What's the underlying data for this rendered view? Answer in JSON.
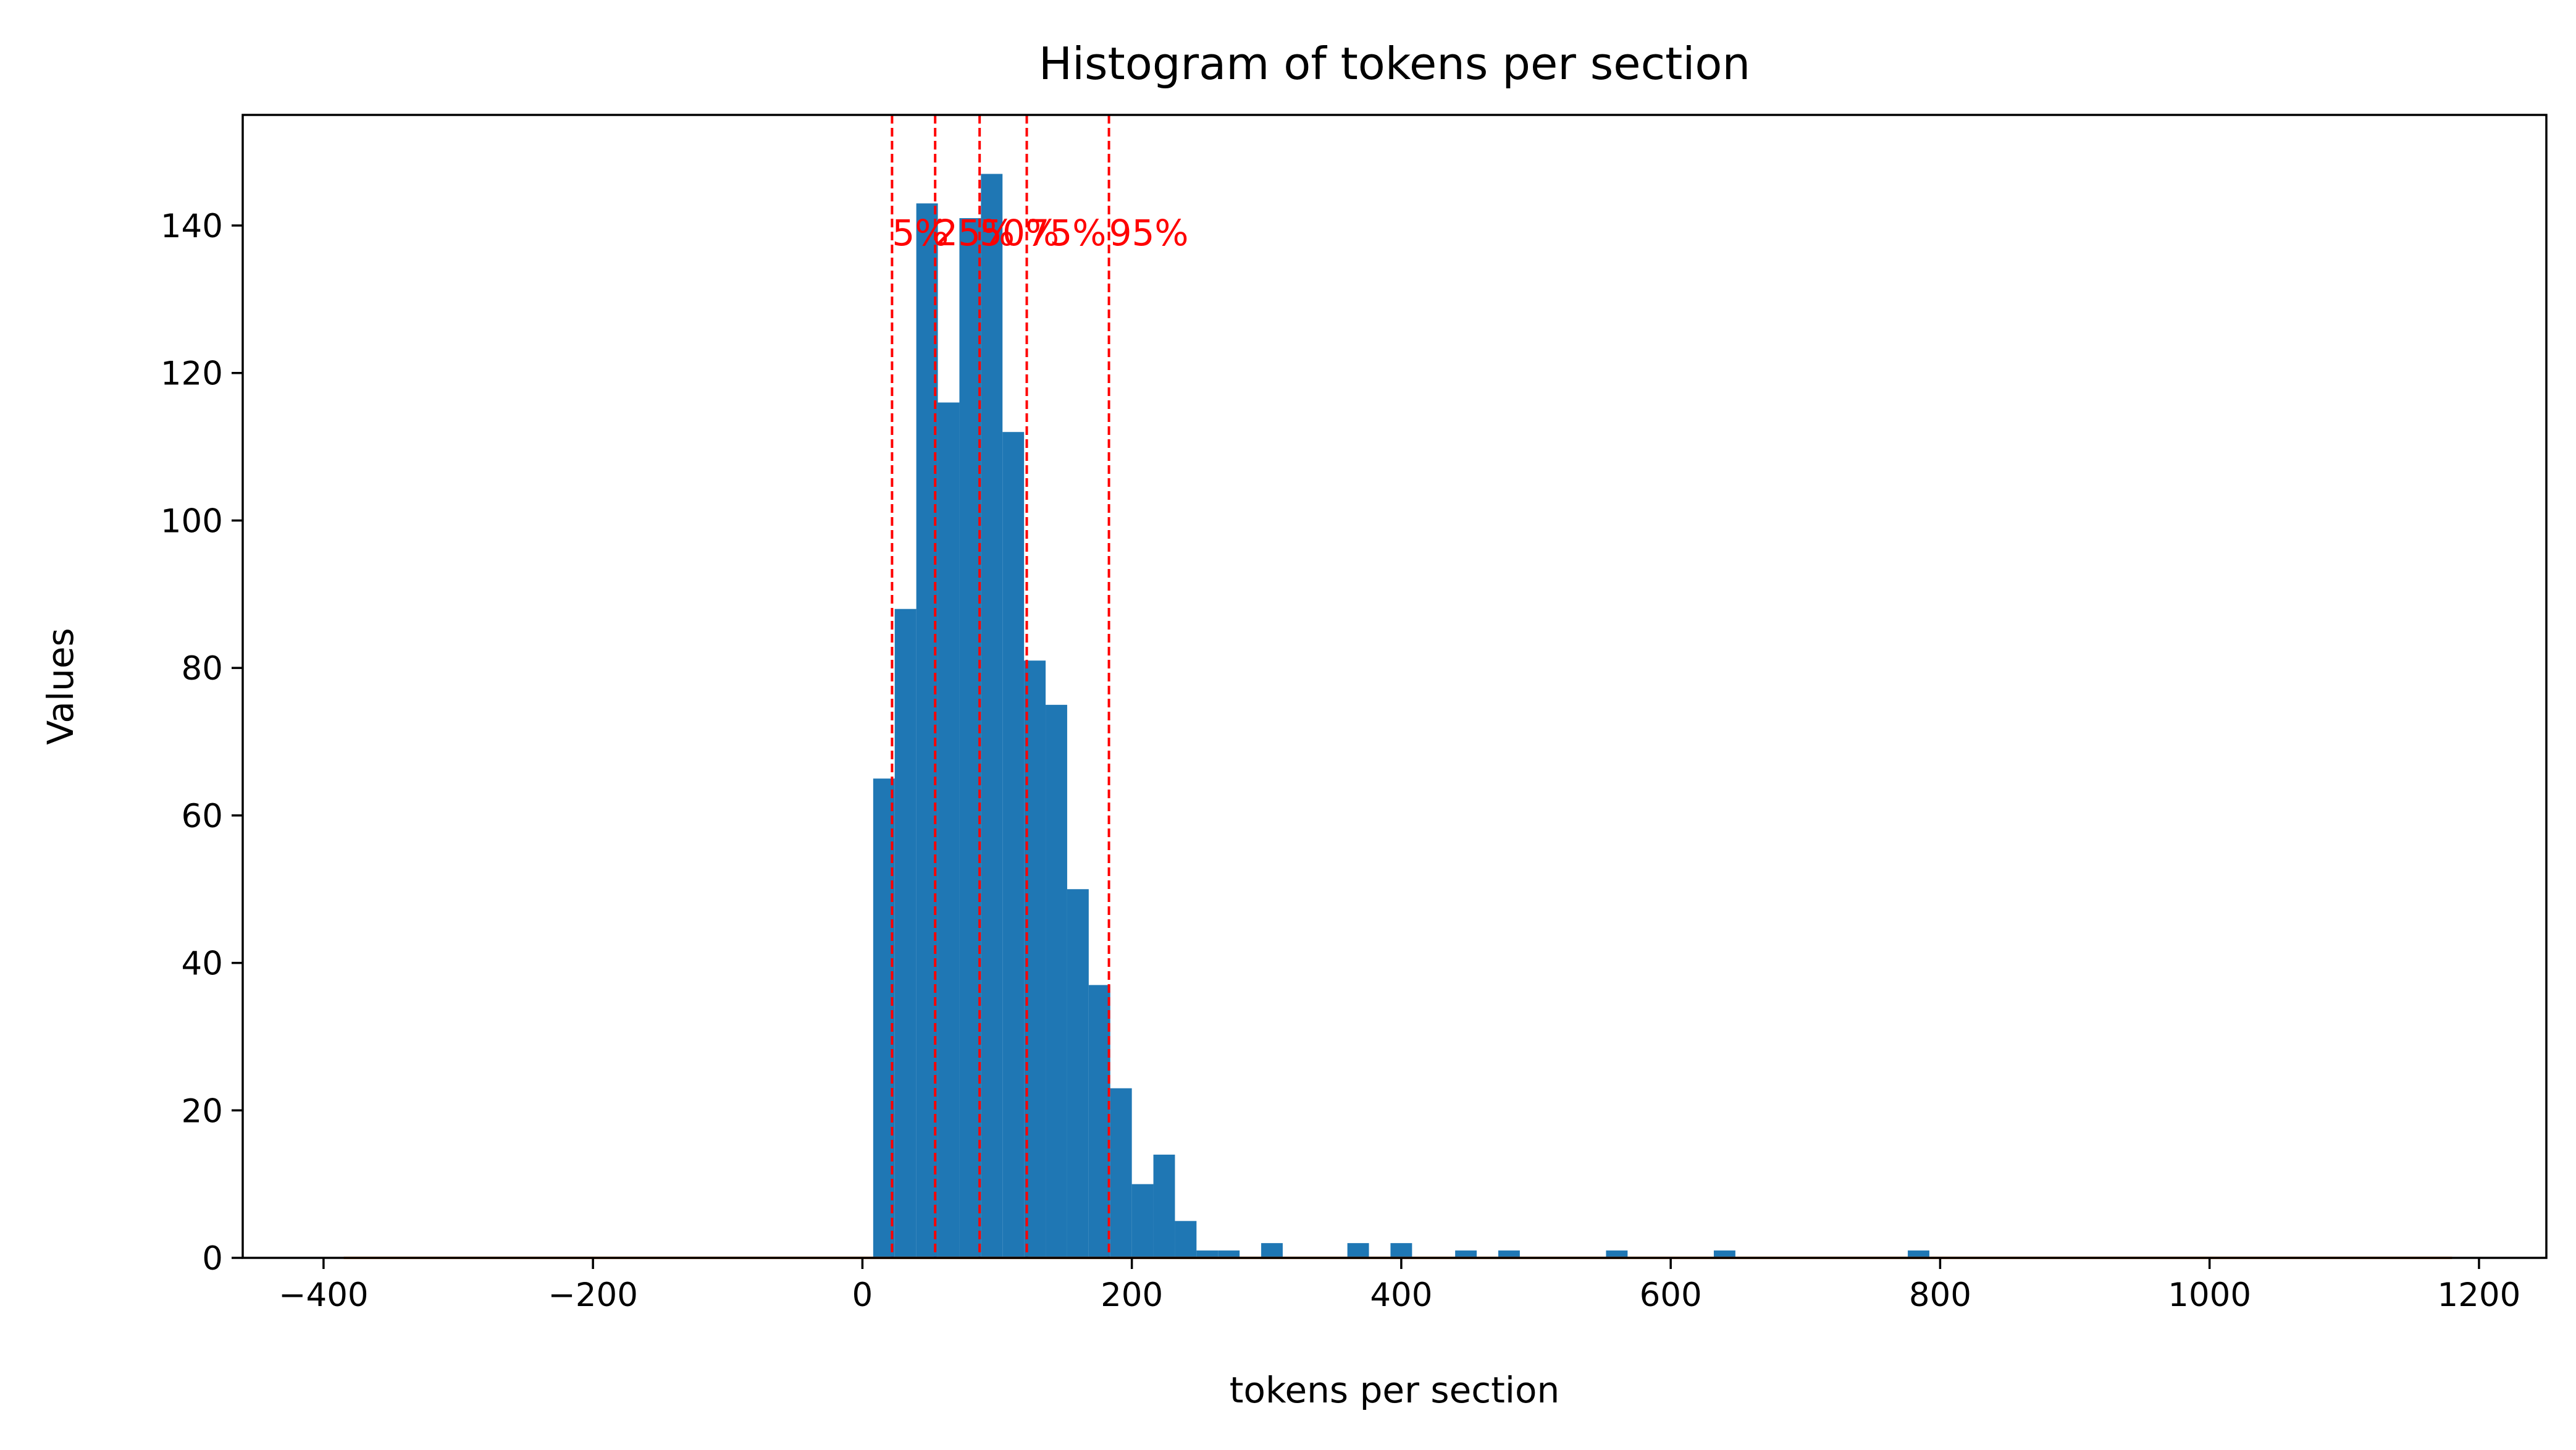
{
  "chart_data": {
    "type": "bar",
    "title": "Histogram of tokens per section",
    "xlabel": "tokens per section",
    "ylabel": "Values",
    "xlim": [
      -460,
      1250
    ],
    "ylim": [
      0,
      155
    ],
    "xticks": [
      -400,
      -200,
      0,
      200,
      400,
      600,
      800,
      1000,
      1200
    ],
    "yticks": [
      0,
      20,
      40,
      60,
      80,
      100,
      120,
      140
    ],
    "xtick_labels": [
      "−400",
      "−200",
      "0",
      "200",
      "400",
      "600",
      "800",
      "1000",
      "1200"
    ],
    "ytick_labels": [
      "0",
      "20",
      "40",
      "60",
      "80",
      "100",
      "120",
      "140"
    ],
    "grid": false,
    "bar_color": "#1f77b4",
    "bin_width": 16,
    "bins": [
      {
        "x": 8,
        "value": 65
      },
      {
        "x": 24,
        "value": 88
      },
      {
        "x": 40,
        "value": 143
      },
      {
        "x": 56,
        "value": 116
      },
      {
        "x": 72,
        "value": 141
      },
      {
        "x": 88,
        "value": 147
      },
      {
        "x": 104,
        "value": 112
      },
      {
        "x": 120,
        "value": 81
      },
      {
        "x": 136,
        "value": 75
      },
      {
        "x": 152,
        "value": 50
      },
      {
        "x": 168,
        "value": 37
      },
      {
        "x": 184,
        "value": 23
      },
      {
        "x": 200,
        "value": 10
      },
      {
        "x": 216,
        "value": 14
      },
      {
        "x": 232,
        "value": 5
      },
      {
        "x": 248,
        "value": 1
      },
      {
        "x": 264,
        "value": 1
      },
      {
        "x": 296,
        "value": 2
      },
      {
        "x": 360,
        "value": 2
      },
      {
        "x": 392,
        "value": 2
      },
      {
        "x": 440,
        "value": 1
      },
      {
        "x": 472,
        "value": 1
      },
      {
        "x": 552,
        "value": 1
      },
      {
        "x": 632,
        "value": 1
      },
      {
        "x": 776,
        "value": 1
      }
    ],
    "baseline": {
      "x_start": -385,
      "x_end": 1180,
      "y": 0,
      "color": "#ff7f0e"
    },
    "percentile_color": "#ff0000",
    "percentiles": [
      {
        "label": "5%",
        "x": 22
      },
      {
        "label": "25%",
        "x": 54
      },
      {
        "label": "50%",
        "x": 87
      },
      {
        "label": "75%",
        "x": 122
      },
      {
        "label": "95%",
        "x": 183
      }
    ],
    "percentile_label_y": 139
  }
}
